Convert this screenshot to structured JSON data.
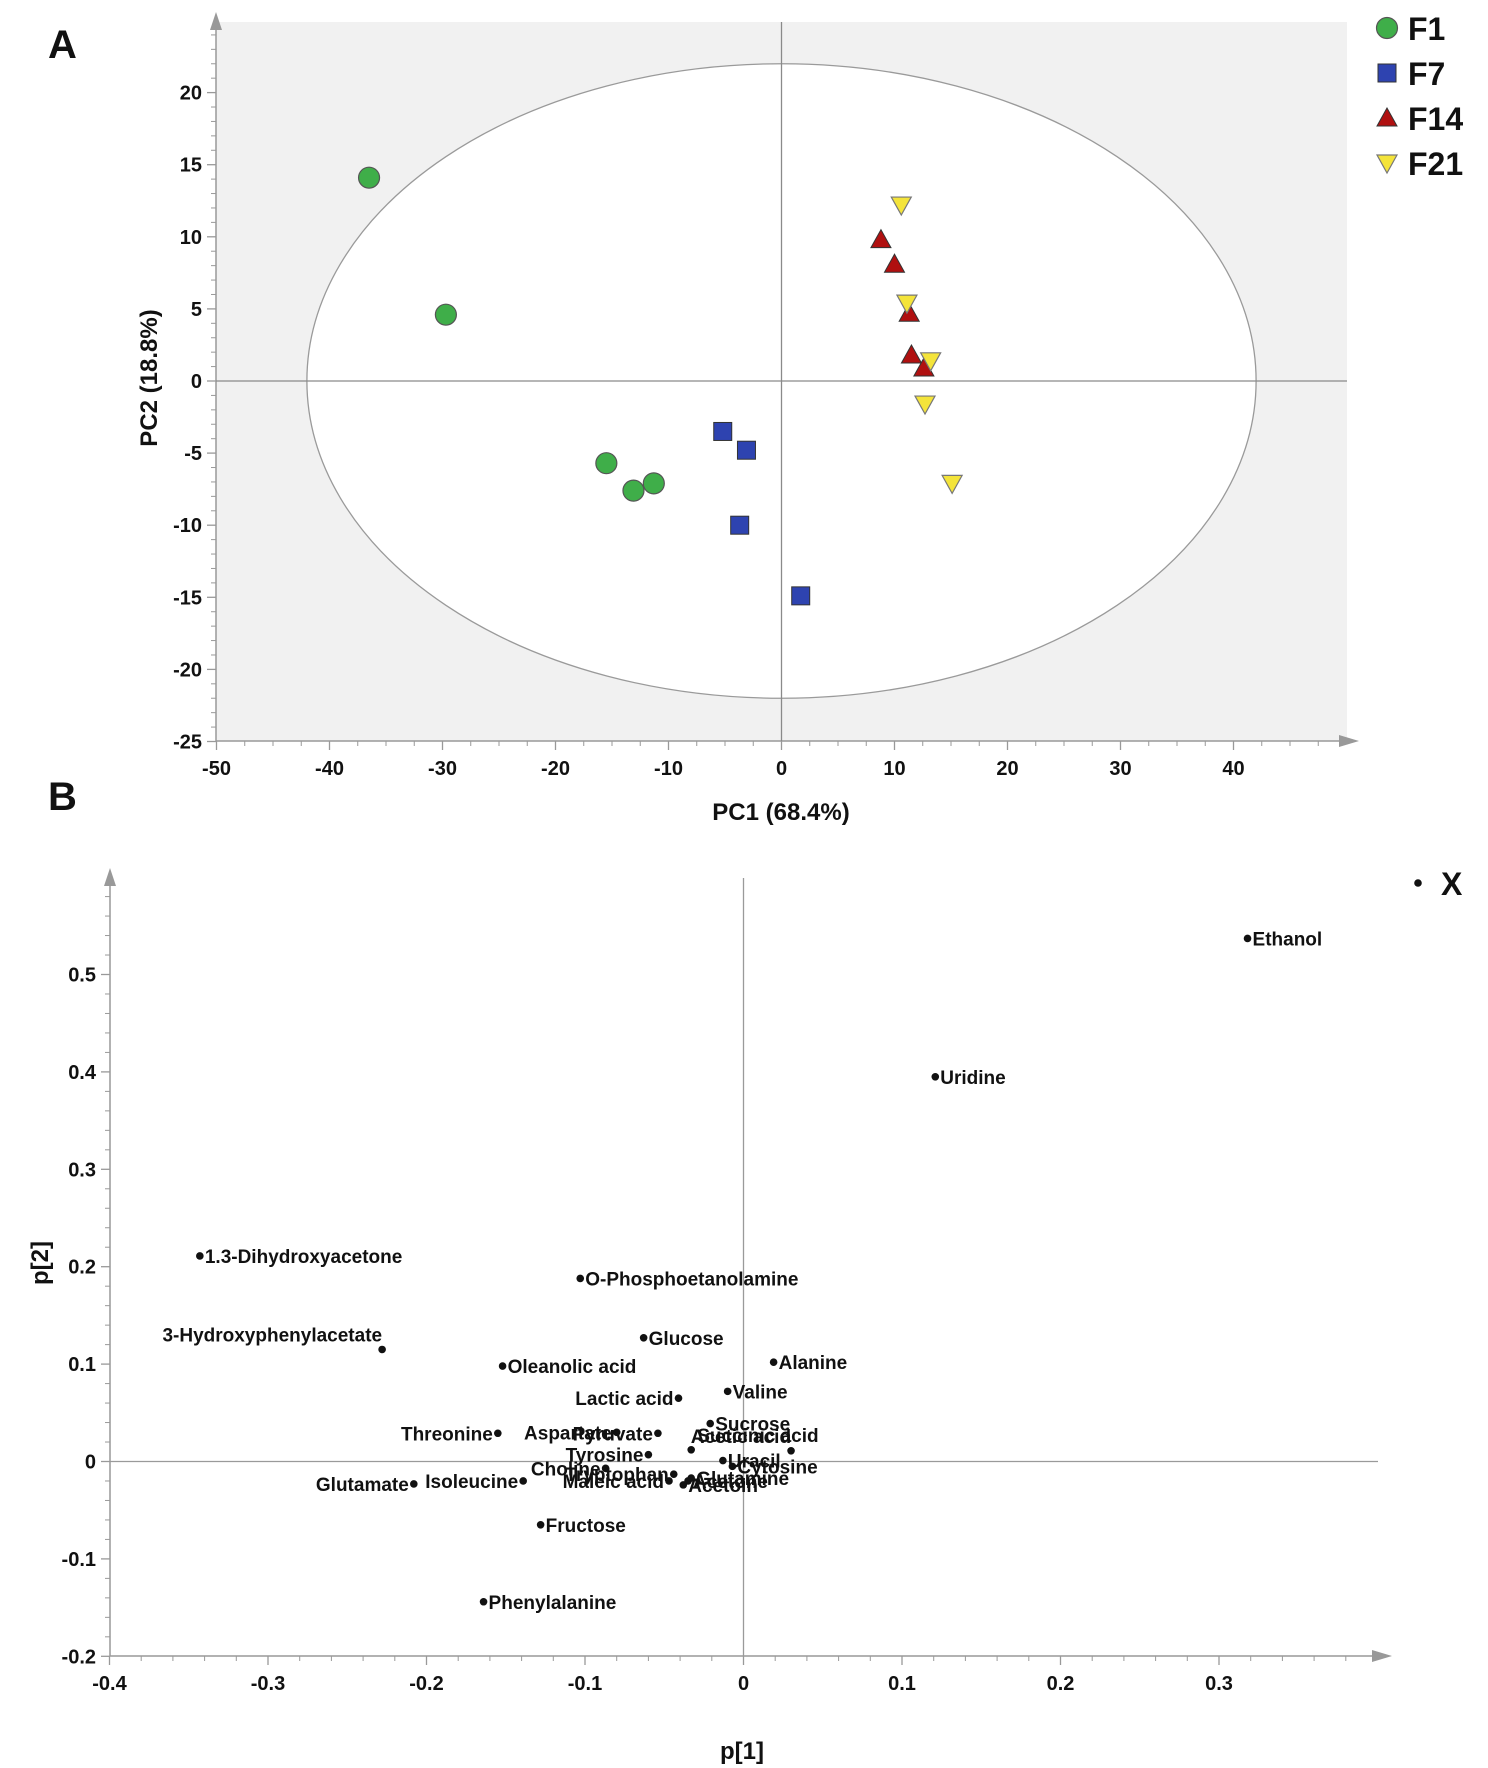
{
  "chart_data": [
    {
      "panel": "A",
      "type": "scatter",
      "xlabel": "PC1 (68.4%)",
      "ylabel": "PC2 (18.8%)",
      "xlim": [
        -50,
        50
      ],
      "ylim": [
        -25,
        25
      ],
      "xticks": [
        -50,
        -40,
        -30,
        -20,
        -10,
        0,
        10,
        20,
        30,
        40
      ],
      "yticks": [
        -25,
        -20,
        -15,
        -10,
        -5,
        0,
        5,
        10,
        15,
        20
      ],
      "ellipse": {
        "center": [
          0,
          0
        ],
        "rx": 42,
        "ry": 22
      },
      "legend_position": "top-right",
      "series": [
        {
          "name": "F1",
          "marker": "circle",
          "color": "#3fae49",
          "points": [
            [
              -36.5,
              14.1
            ],
            [
              -29.7,
              4.6
            ],
            [
              -15.5,
              -5.7
            ],
            [
              -13.1,
              -7.6
            ],
            [
              -11.3,
              -7.1
            ]
          ]
        },
        {
          "name": "F7",
          "marker": "square",
          "color": "#2e43b0",
          "points": [
            [
              -5.2,
              -3.5
            ],
            [
              -3.1,
              -4.8
            ],
            [
              -3.7,
              -10.0
            ],
            [
              1.7,
              -14.9
            ]
          ]
        },
        {
          "name": "F14",
          "marker": "triangle-up",
          "color": "#b01010",
          "points": [
            [
              8.8,
              9.8
            ],
            [
              10.0,
              8.1
            ],
            [
              11.3,
              4.7
            ],
            [
              11.5,
              1.8
            ],
            [
              12.6,
              0.9
            ]
          ]
        },
        {
          "name": "F21",
          "marker": "triangle-down",
          "color": "#f4e43a",
          "points": [
            [
              10.6,
              12.2
            ],
            [
              11.1,
              5.4
            ],
            [
              13.2,
              1.4
            ],
            [
              12.7,
              -1.6
            ],
            [
              15.1,
              -7.1
            ]
          ]
        }
      ]
    },
    {
      "panel": "B",
      "type": "scatter",
      "xlabel": "p[1]",
      "ylabel": "p[2]",
      "xlim": [
        -0.4,
        0.4
      ],
      "ylim": [
        -0.2,
        0.6
      ],
      "xticks": [
        -0.4,
        -0.3,
        -0.2,
        -0.1,
        0,
        0.1,
        0.2,
        0.3
      ],
      "yticks": [
        -0.2,
        -0.1,
        0,
        0.1,
        0.2,
        0.3,
        0.4,
        0.5
      ],
      "xtick_labels": [
        "-0.4",
        "-0.3",
        "-0.2",
        "-0.1",
        "0",
        "0.1",
        "0.2",
        "0.3"
      ],
      "ytick_labels": [
        "-0.2",
        "-0.1",
        "0",
        "0.1",
        "0.2",
        "0.3",
        "0.4",
        "0.5"
      ],
      "legend_position": "top-right",
      "series": [
        {
          "name": "X",
          "marker": "dot",
          "color": "#111111",
          "points": [
            {
              "label": "Ethanol",
              "x": 0.318,
              "y": 0.537,
              "side": "right"
            },
            {
              "label": "Uridine",
              "x": 0.121,
              "y": 0.395,
              "side": "right"
            },
            {
              "label": "1.3-Dihydroxyacetone",
              "x": -0.343,
              "y": 0.211,
              "side": "right"
            },
            {
              "label": "O-Phosphoetanolamine",
              "x": -0.103,
              "y": 0.188,
              "side": "right"
            },
            {
              "label": "3-Hydroxyphenylacetate",
              "x": -0.228,
              "y": 0.115,
              "side": "above-left"
            },
            {
              "label": "Glucose",
              "x": -0.063,
              "y": 0.127,
              "side": "right"
            },
            {
              "label": "Oleanolic acid",
              "x": -0.152,
              "y": 0.098,
              "side": "right"
            },
            {
              "label": "Alanine",
              "x": 0.019,
              "y": 0.102,
              "side": "right"
            },
            {
              "label": "Valine",
              "x": -0.01,
              "y": 0.072,
              "side": "right"
            },
            {
              "label": "Lactic acid",
              "x": -0.041,
              "y": 0.065,
              "side": "left"
            },
            {
              "label": "Sucrose",
              "x": -0.021,
              "y": 0.039,
              "side": "right"
            },
            {
              "label": "Succinic acid",
              "x": -0.033,
              "y": 0.012,
              "side": "above-right"
            },
            {
              "label": "Acetic acid",
              "x": 0.03,
              "y": 0.011,
              "side": "above-left"
            },
            {
              "label": "Threonine",
              "x": -0.155,
              "y": 0.029,
              "side": "left"
            },
            {
              "label": "Aspartate",
              "x": -0.08,
              "y": 0.03,
              "side": "left"
            },
            {
              "label": "Pyruvate",
              "x": -0.054,
              "y": 0.029,
              "side": "left"
            },
            {
              "label": "Tyrosine",
              "x": -0.06,
              "y": 0.007,
              "side": "left"
            },
            {
              "label": "Choline",
              "x": -0.087,
              "y": -0.007,
              "side": "left"
            },
            {
              "label": "Uracil",
              "x": -0.013,
              "y": 0.001,
              "side": "right"
            },
            {
              "label": "Cytosine",
              "x": -0.007,
              "y": -0.005,
              "side": "right"
            },
            {
              "label": "Glutamate",
              "x": -0.208,
              "y": -0.023,
              "side": "left"
            },
            {
              "label": "Isoleucine",
              "x": -0.139,
              "y": -0.02,
              "side": "left"
            },
            {
              "label": "Tryptophan",
              "x": -0.044,
              "y": -0.013,
              "side": "left"
            },
            {
              "label": "Maleic acid",
              "x": -0.047,
              "y": -0.02,
              "side": "left"
            },
            {
              "label": "Acetone",
              "x": -0.035,
              "y": -0.02,
              "side": "right"
            },
            {
              "label": "Acetoin",
              "x": -0.038,
              "y": -0.024,
              "side": "right"
            },
            {
              "label": "Glutamine",
              "x": -0.033,
              "y": -0.017,
              "side": "right"
            },
            {
              "label": "Fructose",
              "x": -0.128,
              "y": -0.065,
              "side": "right"
            },
            {
              "label": "Phenylalanine",
              "x": -0.164,
              "y": -0.144,
              "side": "right"
            }
          ]
        }
      ]
    }
  ]
}
